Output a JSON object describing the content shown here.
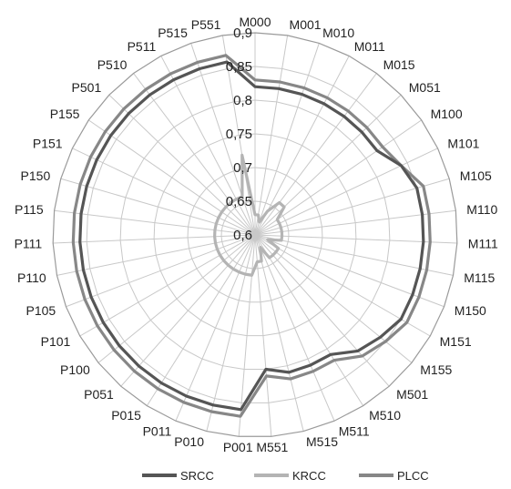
{
  "chart_data": {
    "type": "radar",
    "title": "",
    "categories": [
      "M000",
      "M001",
      "M010",
      "M011",
      "M015",
      "M051",
      "M100",
      "M101",
      "M105",
      "M110",
      "M111",
      "M115",
      "M150",
      "M151",
      "M155",
      "M501",
      "M510",
      "M511",
      "M515",
      "M551",
      "P001",
      "P010",
      "P011",
      "P015",
      "P051",
      "P100",
      "P101",
      "P105",
      "P110",
      "P111",
      "P115",
      "P150",
      "P151",
      "P155",
      "P501",
      "P510",
      "P511",
      "P515",
      "P551"
    ],
    "rlim": [
      0.6,
      0.9
    ],
    "ticks": [
      0.6,
      0.65,
      0.7,
      0.75,
      0.8,
      0.85,
      0.9
    ],
    "tick_labels": [
      "0,6",
      "0,65",
      "0,7",
      "0,75",
      "0,8",
      "0,85",
      "0,9"
    ],
    "grid": true,
    "legend_position": "bottom",
    "series": [
      {
        "name": "SRCC",
        "color": "#555555",
        "values": [
          0.82,
          0.82,
          0.82,
          0.82,
          0.82,
          0.82,
          0.82,
          0.84,
          0.85,
          0.85,
          0.85,
          0.85,
          0.85,
          0.85,
          0.84,
          0.83,
          0.81,
          0.81,
          0.81,
          0.8,
          0.86,
          0.86,
          0.86,
          0.86,
          0.86,
          0.86,
          0.86,
          0.86,
          0.86,
          0.86,
          0.86,
          0.86,
          0.86,
          0.86,
          0.86,
          0.86,
          0.86,
          0.86,
          0.86
        ]
      },
      {
        "name": "KRCC",
        "color": "#b4b4b4",
        "values": [
          0.63,
          0.63,
          0.62,
          0.64,
          0.66,
          0.66,
          0.64,
          0.64,
          0.64,
          0.64,
          0.64,
          0.64,
          0.62,
          0.64,
          0.64,
          0.64,
          0.64,
          0.62,
          0.64,
          0.64,
          0.66,
          0.66,
          0.66,
          0.66,
          0.66,
          0.66,
          0.66,
          0.66,
          0.66,
          0.66,
          0.66,
          0.66,
          0.66,
          0.66,
          0.66,
          0.66,
          0.66,
          0.66,
          0.72
        ]
      },
      {
        "name": "PLCC",
        "color": "#878787",
        "values": [
          0.83,
          0.83,
          0.83,
          0.83,
          0.83,
          0.83,
          0.83,
          0.84,
          0.86,
          0.86,
          0.86,
          0.86,
          0.86,
          0.86,
          0.85,
          0.84,
          0.82,
          0.82,
          0.82,
          0.81,
          0.87,
          0.87,
          0.87,
          0.87,
          0.87,
          0.87,
          0.87,
          0.87,
          0.87,
          0.87,
          0.87,
          0.87,
          0.87,
          0.87,
          0.87,
          0.87,
          0.87,
          0.87,
          0.87
        ]
      }
    ]
  }
}
